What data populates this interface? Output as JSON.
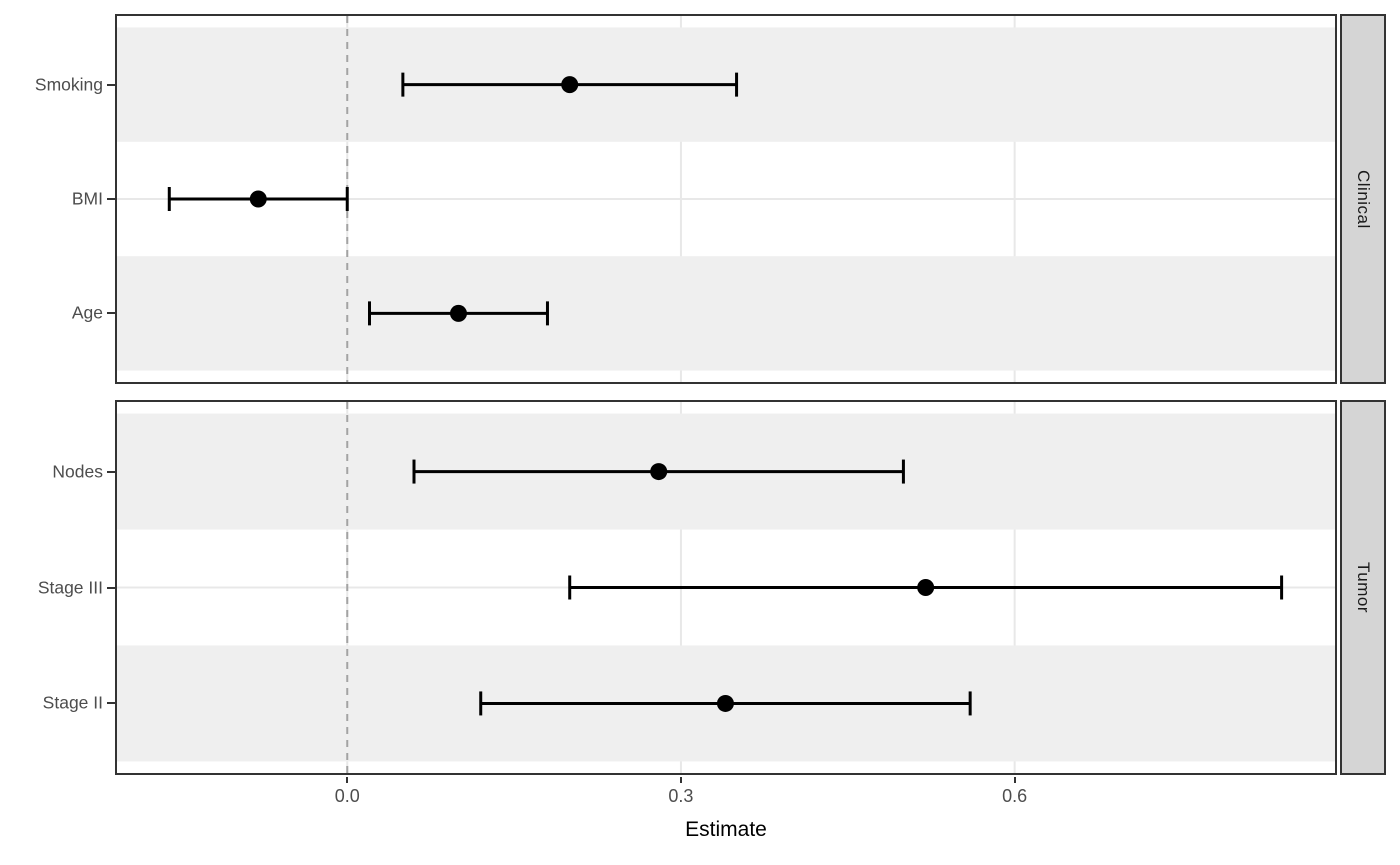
{
  "chart_data": {
    "type": "pointrange",
    "title": "",
    "xlabel": "Estimate",
    "xlim": [
      -0.207,
      0.888
    ],
    "x_ticks": [
      {
        "label": "0.0",
        "value": 0.0
      },
      {
        "label": "0.3",
        "value": 0.3
      },
      {
        "label": "0.6",
        "value": 0.6
      }
    ],
    "reference_line": {
      "x": 0.0,
      "style": "dashed"
    },
    "grid": true,
    "facets": [
      {
        "label": "Clinical",
        "rows": [
          {
            "label": "Smoking",
            "estimate": 0.2,
            "low": 0.05,
            "high": 0.35
          },
          {
            "label": "BMI",
            "estimate": -0.08,
            "low": -0.16,
            "high": 0.0
          },
          {
            "label": "Age",
            "estimate": 0.1,
            "low": 0.02,
            "high": 0.18
          }
        ]
      },
      {
        "label": "Tumor",
        "rows": [
          {
            "label": "Nodes",
            "estimate": 0.28,
            "low": 0.06,
            "high": 0.5
          },
          {
            "label": "Stage III",
            "estimate": 0.52,
            "low": 0.2,
            "high": 0.84
          },
          {
            "label": "Stage II",
            "estimate": 0.34,
            "low": 0.12,
            "high": 0.56
          }
        ]
      }
    ],
    "colors": {
      "point_and_bar": "#000000",
      "stripe_band": "#efefef",
      "gridline": "#e8e8e8",
      "reference_line": "#a3a3a3",
      "panel_border": "#333333",
      "strip_background": "#d5d5d5",
      "axis_text": "#4d4d4d"
    }
  }
}
